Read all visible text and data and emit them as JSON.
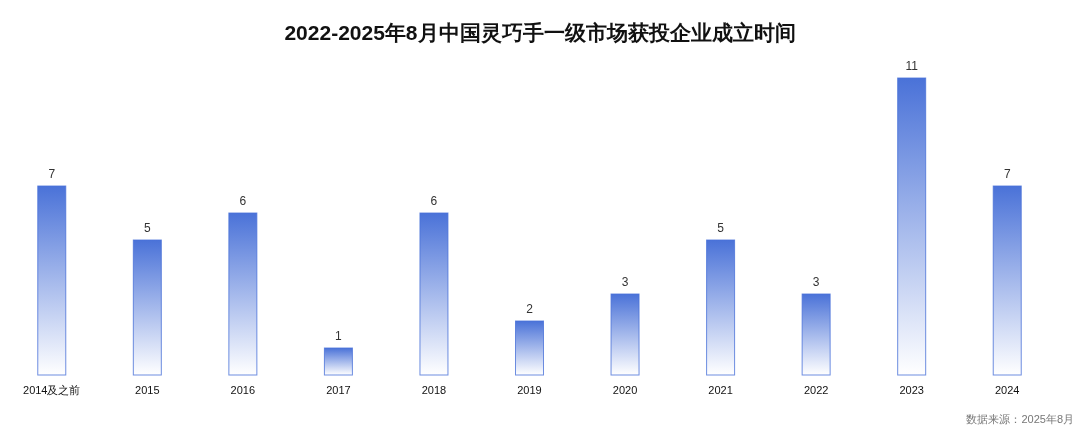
{
  "chart_data": {
    "type": "bar",
    "title": "2022-2025年8月中国灵巧手一级市场获投企业成立时间",
    "categories": [
      "2014及之前",
      "2015",
      "2016",
      "2017",
      "2018",
      "2019",
      "2020",
      "2021",
      "2022",
      "2023",
      "2024"
    ],
    "values": [
      7,
      5,
      6,
      1,
      6,
      2,
      3,
      5,
      3,
      11,
      7
    ],
    "color": "#4a72d8",
    "data_labels": true,
    "annotations": [
      "数据来源：2025年8月"
    ]
  }
}
